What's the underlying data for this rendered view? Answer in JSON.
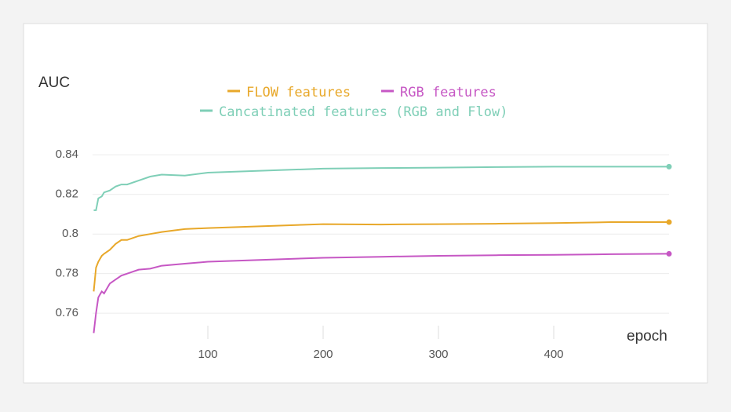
{
  "chart_data": {
    "type": "line",
    "y_label": "AUC",
    "x_label": "epoch",
    "x": [
      1,
      3,
      5,
      8,
      10,
      15,
      20,
      25,
      30,
      40,
      50,
      60,
      80,
      100,
      150,
      200,
      250,
      300,
      350,
      400,
      450,
      500
    ],
    "series": [
      {
        "name": "FLOW features",
        "color": "#e8a82a",
        "values": [
          0.771,
          0.783,
          0.786,
          0.789,
          0.79,
          0.792,
          0.795,
          0.797,
          0.797,
          0.799,
          0.8,
          0.801,
          0.8025,
          0.803,
          0.804,
          0.805,
          0.8048,
          0.805,
          0.8052,
          0.8055,
          0.806,
          0.806
        ]
      },
      {
        "name": "RGB features",
        "color": "#c657c4",
        "values": [
          0.75,
          0.76,
          0.768,
          0.771,
          0.77,
          0.775,
          0.777,
          0.779,
          0.78,
          0.782,
          0.7825,
          0.784,
          0.785,
          0.786,
          0.787,
          0.788,
          0.7885,
          0.789,
          0.7893,
          0.7895,
          0.7898,
          0.79
        ]
      },
      {
        "name": "Cancatinated features (RGB and Flow)",
        "color": "#7fcfb7",
        "values": [
          0.812,
          0.812,
          0.818,
          0.819,
          0.821,
          0.822,
          0.824,
          0.825,
          0.825,
          0.827,
          0.829,
          0.83,
          0.8295,
          0.831,
          0.832,
          0.833,
          0.8333,
          0.8335,
          0.8338,
          0.834,
          0.834,
          0.834
        ]
      }
    ],
    "xlim": [
      0,
      500
    ],
    "xticks": [
      100,
      200,
      300,
      400
    ],
    "ylim": [
      0.745,
      0.85
    ],
    "yticks": [
      0.76,
      0.78,
      {
        "value": 0.8,
        "label": "0.8"
      },
      0.82,
      0.84
    ],
    "grid": true
  }
}
